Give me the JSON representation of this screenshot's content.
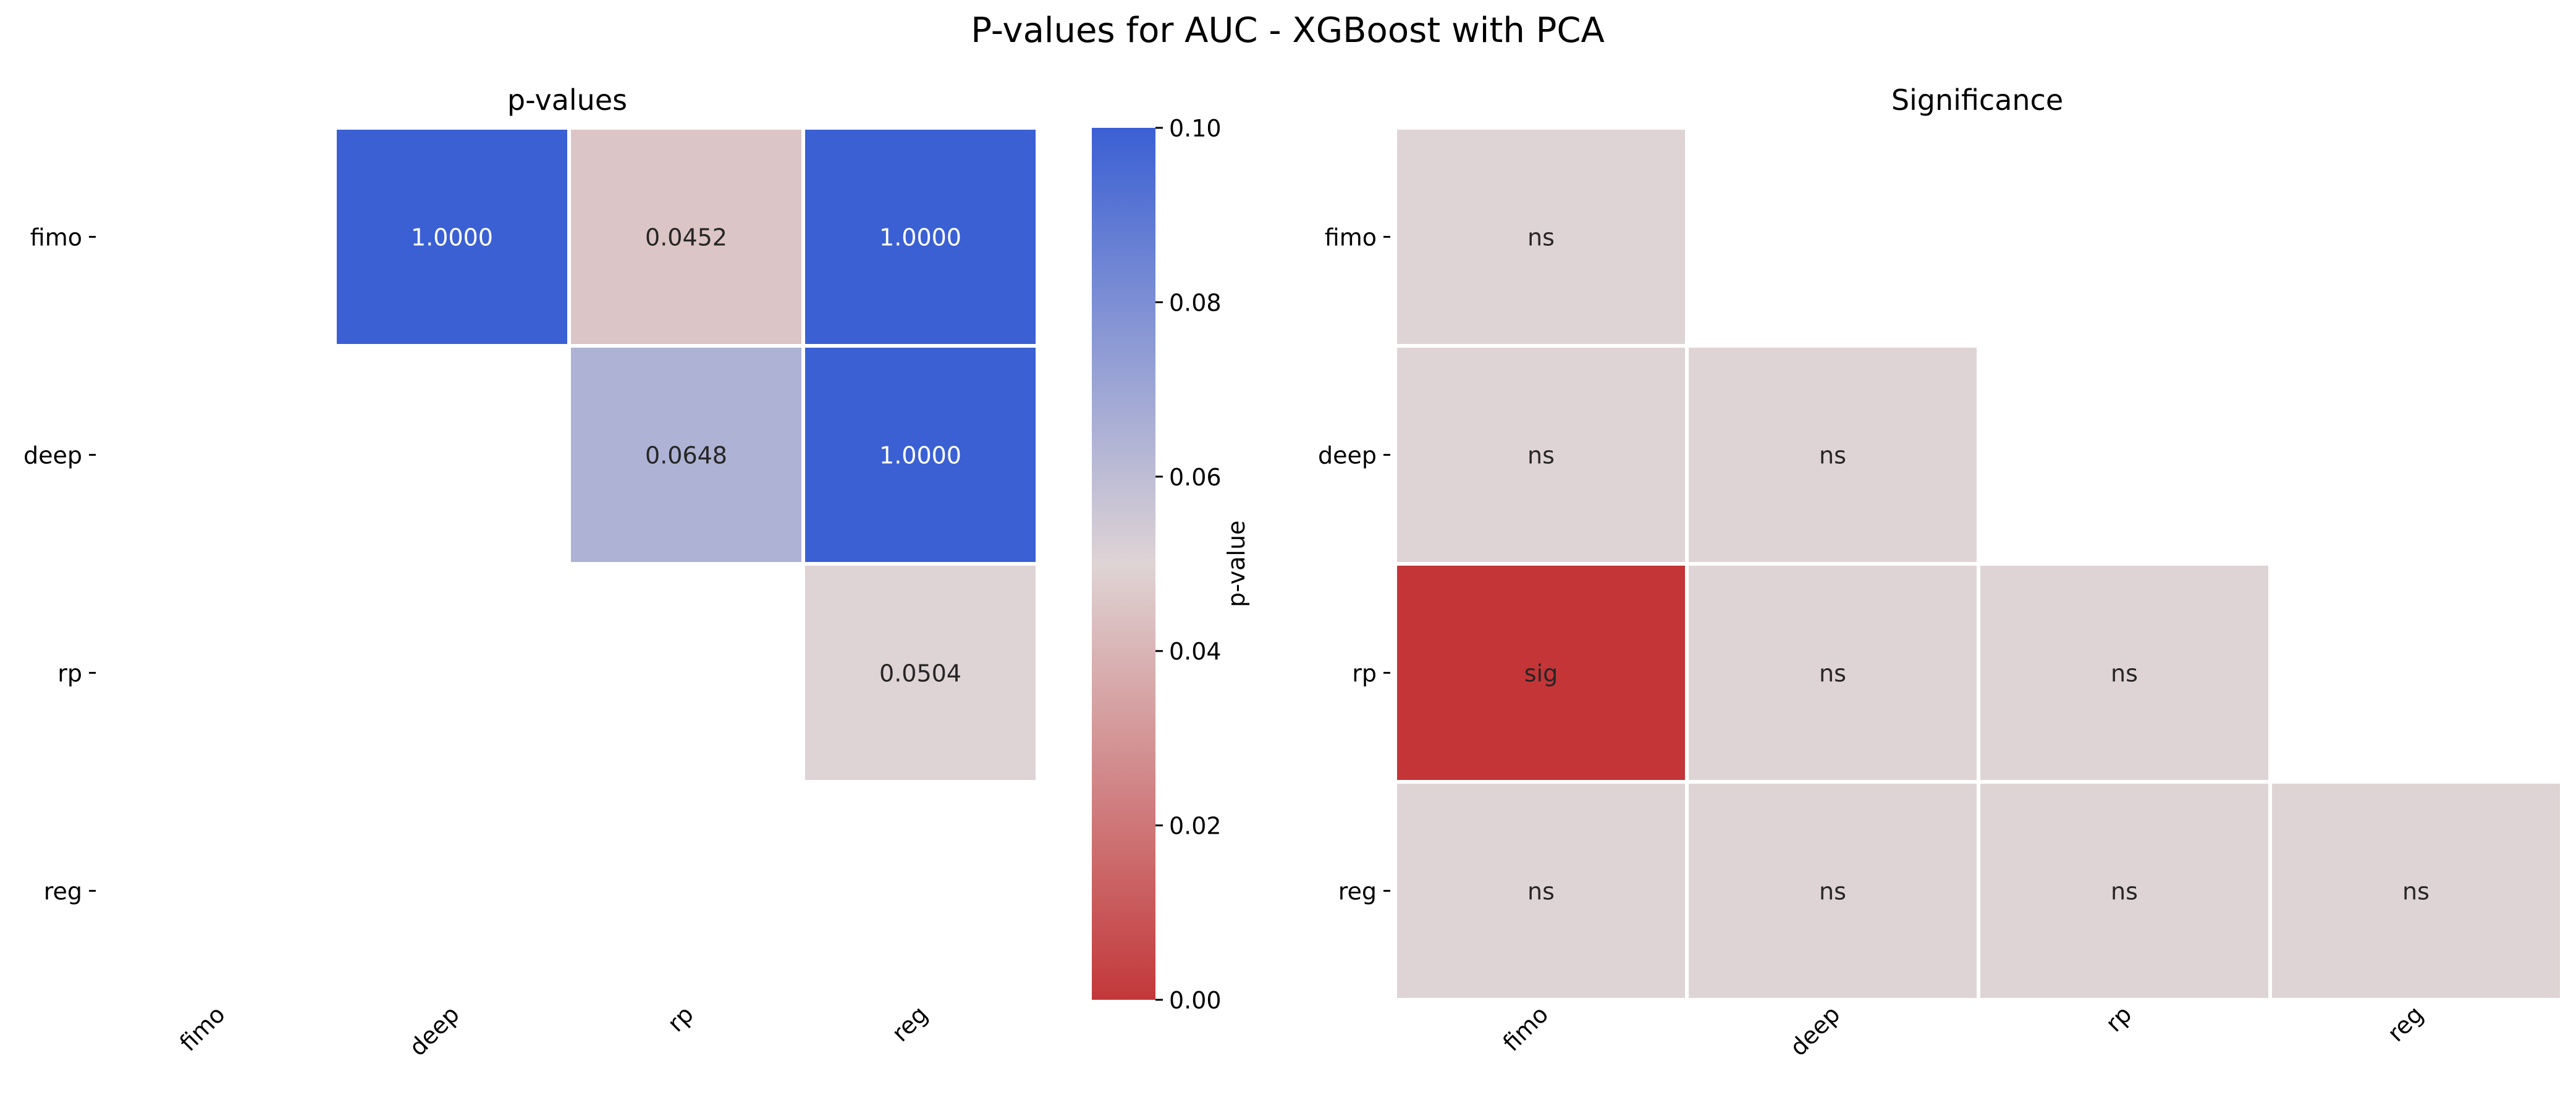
{
  "figure": {
    "title": "P-values for AUC - XGBoost with PCA"
  },
  "chart_data": [
    {
      "type": "heatmap",
      "title": "p-values",
      "xlabel": "",
      "ylabel": "",
      "x_categories": [
        "fimo",
        "deep",
        "rp",
        "reg"
      ],
      "y_categories": [
        "fimo",
        "deep",
        "rp",
        "reg"
      ],
      "mask": "lower triangle including diagonal",
      "cells": [
        {
          "row": "fimo",
          "col": "deep",
          "value": 1.0,
          "label": "1.0000"
        },
        {
          "row": "fimo",
          "col": "rp",
          "value": 0.0452,
          "label": "0.0452"
        },
        {
          "row": "fimo",
          "col": "reg",
          "value": 1.0,
          "label": "1.0000"
        },
        {
          "row": "deep",
          "col": "rp",
          "value": 0.0648,
          "label": "0.0648"
        },
        {
          "row": "deep",
          "col": "reg",
          "value": 1.0,
          "label": "1.0000"
        },
        {
          "row": "rp",
          "col": "reg",
          "value": 0.0504,
          "label": "0.0504"
        }
      ],
      "colorbar": {
        "label": "p-value",
        "range": [
          0,
          0.1
        ],
        "ticks": [
          "0.00",
          "0.02",
          "0.04",
          "0.06",
          "0.08",
          "0.10"
        ],
        "colormap": [
          "#c3383a",
          "#dfd4d5",
          "#3b60d4"
        ]
      }
    },
    {
      "type": "heatmap",
      "title": "Significance",
      "xlabel": "",
      "ylabel": "",
      "x_categories": [
        "fimo",
        "deep",
        "rp",
        "reg"
      ],
      "y_categories": [
        "fimo",
        "deep",
        "rp",
        "reg"
      ],
      "mask": "upper triangle excluding diagonal",
      "colors": {
        "sig": "#c43537",
        "ns": "#dfd4d5"
      },
      "cells": [
        {
          "row": "fimo",
          "col": "fimo",
          "label": "ns"
        },
        {
          "row": "deep",
          "col": "fimo",
          "label": "ns"
        },
        {
          "row": "deep",
          "col": "deep",
          "label": "ns"
        },
        {
          "row": "rp",
          "col": "fimo",
          "label": "sig"
        },
        {
          "row": "rp",
          "col": "deep",
          "label": "ns"
        },
        {
          "row": "rp",
          "col": "rp",
          "label": "ns"
        },
        {
          "row": "reg",
          "col": "fimo",
          "label": "ns"
        },
        {
          "row": "reg",
          "col": "deep",
          "label": "ns"
        },
        {
          "row": "reg",
          "col": "rp",
          "label": "ns"
        },
        {
          "row": "reg",
          "col": "reg",
          "label": "ns"
        }
      ]
    }
  ]
}
